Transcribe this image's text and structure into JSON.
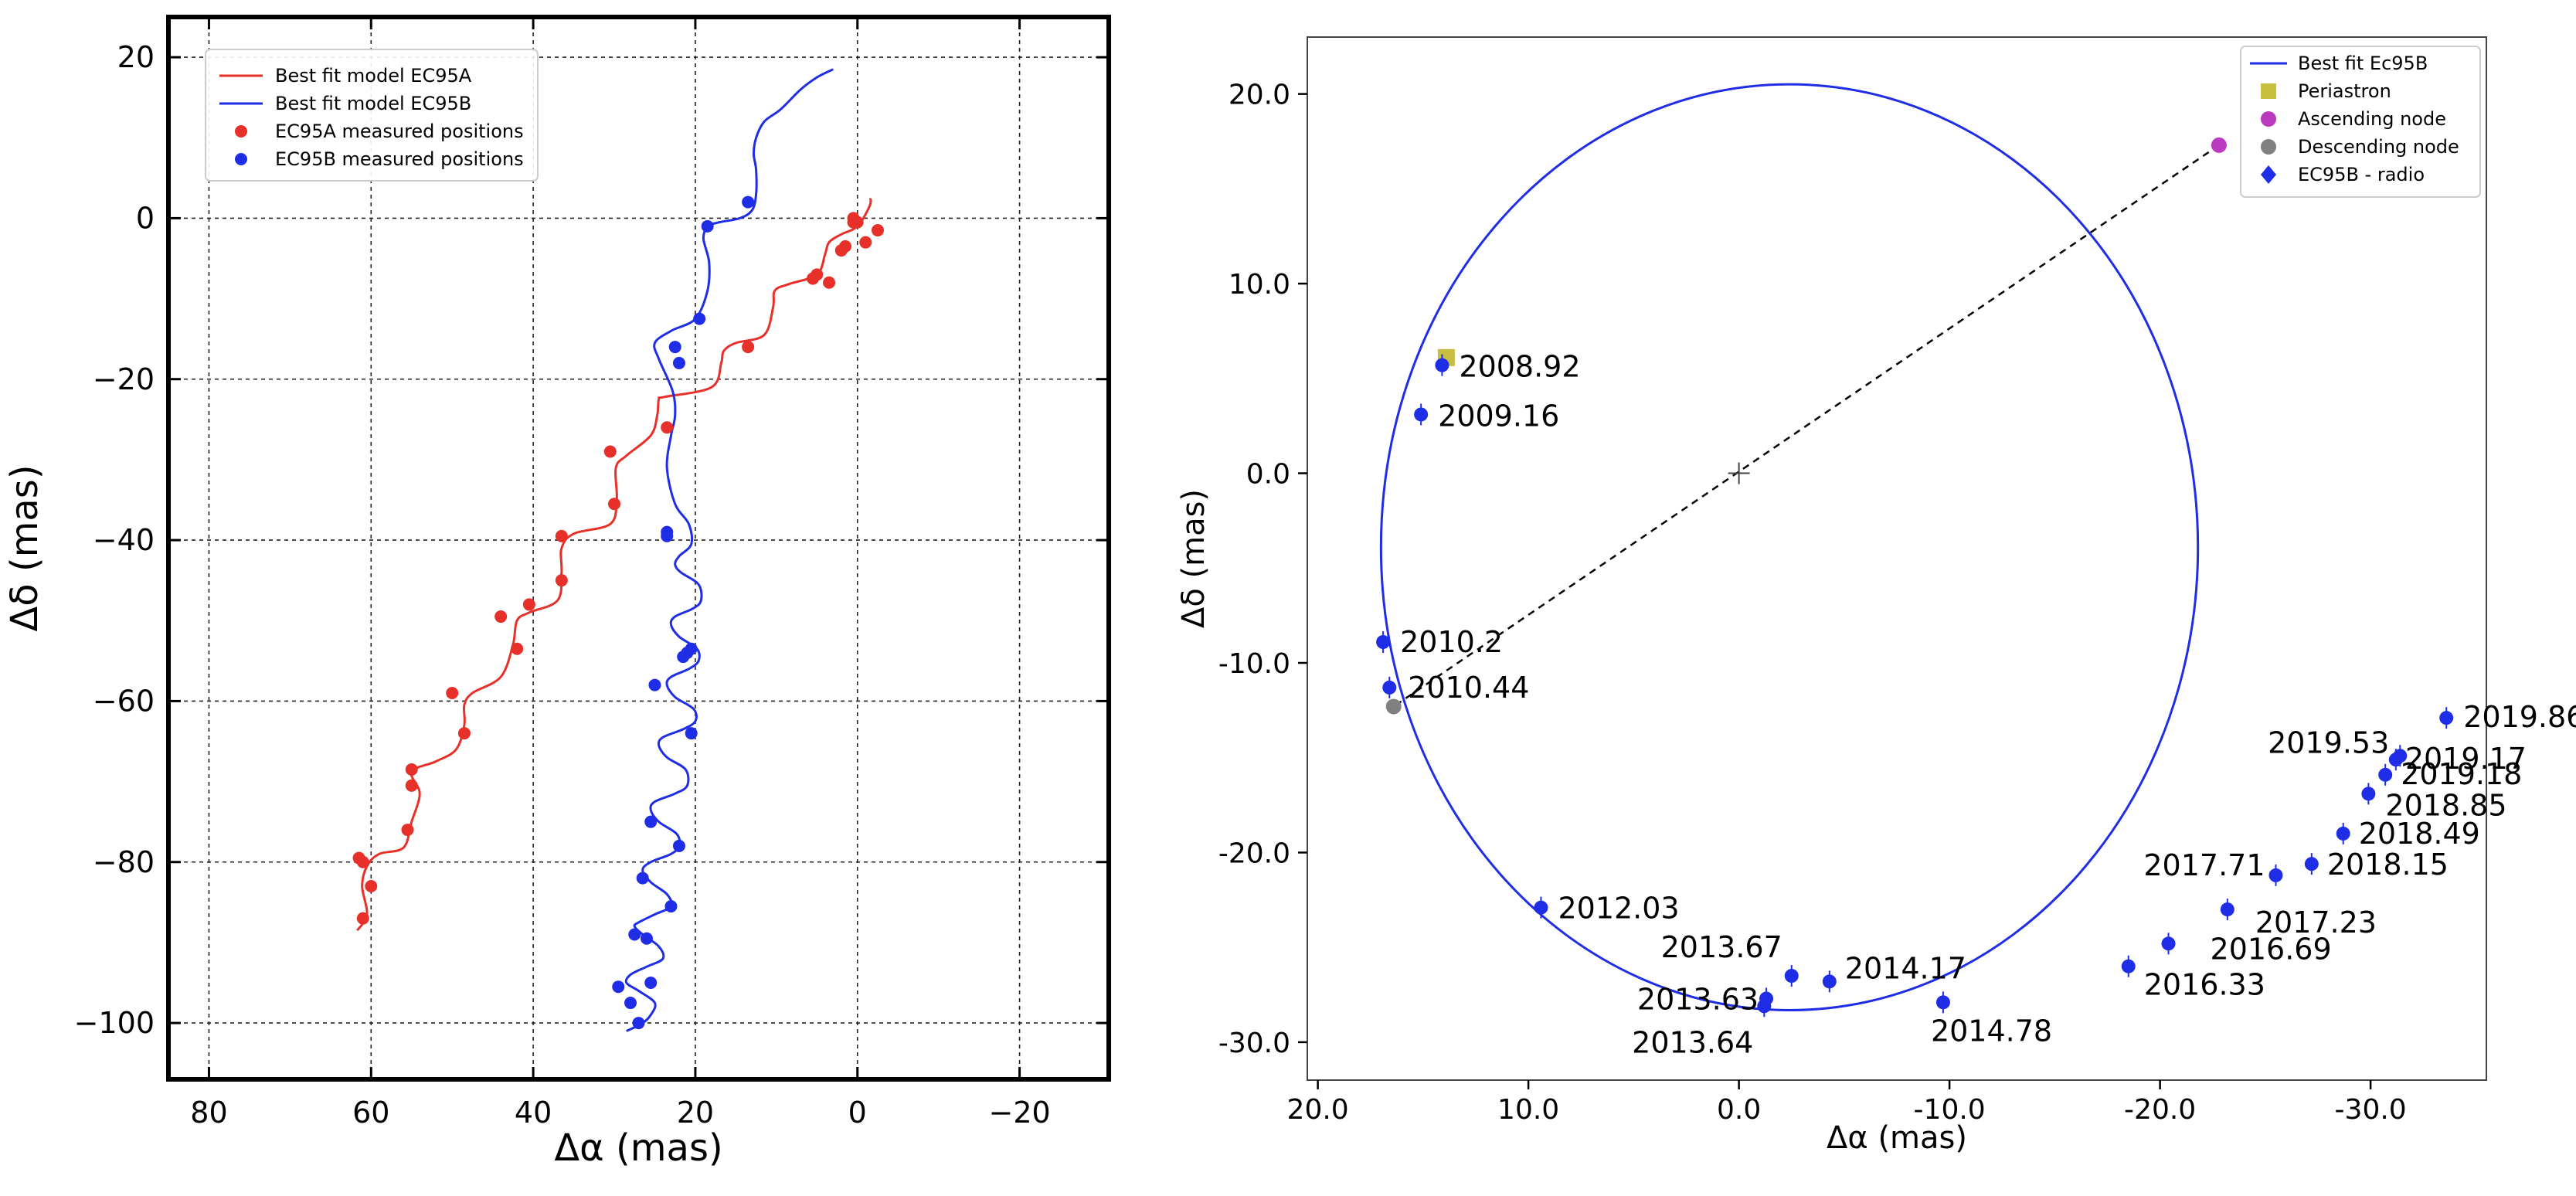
{
  "chart_data": [
    {
      "type": "line",
      "xlabel": "Δα (mas)",
      "ylabel": "Δδ (mas)",
      "xlim": [
        85,
        -31
      ],
      "ylim": [
        -107,
        25
      ],
      "xticks": [
        80,
        60,
        40,
        20,
        0,
        -20
      ],
      "yticks": [
        20,
        0,
        -20,
        -40,
        -60,
        -80,
        -100
      ],
      "xtick_labels": [
        "80",
        "60",
        "40",
        "20",
        "0",
        "−20"
      ],
      "ytick_labels": [
        "20",
        "0",
        "−20",
        "−40",
        "−60",
        "−80",
        "−100"
      ],
      "grid": true,
      "legend_position": "top-left",
      "legend": [
        {
          "label": "Best fit model EC95A",
          "kind": "line",
          "color": "#e8302a"
        },
        {
          "label": "Best fit model EC95B",
          "kind": "line",
          "color": "#1f2ee6"
        },
        {
          "label": "EC95A measured positions",
          "kind": "marker",
          "color": "#e8302a"
        },
        {
          "label": "EC95B measured positions",
          "kind": "marker",
          "color": "#1f2ee6"
        }
      ],
      "series": [
        {
          "name": "Best fit model EC95A",
          "kind": "line",
          "color": "#e8302a",
          "points": [
            [
              61.7,
              -88.5
            ],
            [
              60.5,
              -86.5
            ],
            [
              61.1,
              -83
            ],
            [
              60.5,
              -80.5
            ],
            [
              59,
              -79
            ],
            [
              56,
              -78.2
            ],
            [
              55,
              -75
            ],
            [
              54,
              -71.5
            ],
            [
              55,
              -68.8
            ],
            [
              52,
              -67.5
            ],
            [
              49.5,
              -66
            ],
            [
              48.5,
              -63
            ],
            [
              48.5,
              -60.5
            ],
            [
              47.5,
              -59
            ],
            [
              44,
              -57
            ],
            [
              42.5,
              -53
            ],
            [
              42,
              -50
            ],
            [
              40.5,
              -49
            ],
            [
              37,
              -47.5
            ],
            [
              36.5,
              -44
            ],
            [
              36.5,
              -41
            ],
            [
              35,
              -39.2
            ],
            [
              30.5,
              -38
            ],
            [
              29.7,
              -35
            ],
            [
              29.8,
              -31
            ],
            [
              28.5,
              -29.5
            ],
            [
              25.5,
              -27
            ],
            [
              24.7,
              -24.5
            ],
            [
              24.5,
              -22.5
            ],
            [
              23.8,
              -22.2
            ],
            [
              18,
              -21
            ],
            [
              16.8,
              -18
            ],
            [
              16.5,
              -16.5
            ],
            [
              15,
              -15.5
            ],
            [
              11.5,
              -14.5
            ],
            [
              10.4,
              -11
            ],
            [
              10.2,
              -9
            ],
            [
              8.5,
              -8.2
            ],
            [
              5,
              -7
            ],
            [
              4,
              -4.5
            ],
            [
              3.5,
              -3
            ],
            [
              2,
              -2
            ],
            [
              0,
              -1
            ],
            [
              -1.5,
              1.5
            ],
            [
              -1.6,
              2.5
            ]
          ]
        },
        {
          "name": "Best fit model EC95B",
          "kind": "line",
          "color": "#1f2ee6",
          "points": [
            [
              28.5,
              -101
            ],
            [
              26.5,
              -100
            ],
            [
              25.5,
              -99
            ],
            [
              25,
              -97.5
            ],
            [
              27,
              -96
            ],
            [
              28.5,
              -95
            ],
            [
              28,
              -94
            ],
            [
              26,
              -93
            ],
            [
              24,
              -92
            ],
            [
              24.5,
              -90.5
            ],
            [
              26.5,
              -89
            ],
            [
              27.5,
              -88
            ],
            [
              27,
              -87.5
            ],
            [
              25,
              -86.5
            ],
            [
              23,
              -85.5
            ],
            [
              23.5,
              -84
            ],
            [
              25.5,
              -82.5
            ],
            [
              26.5,
              -81
            ],
            [
              25.5,
              -80
            ],
            [
              23,
              -79
            ],
            [
              22,
              -78
            ],
            [
              22.3,
              -76.5
            ],
            [
              24.5,
              -75
            ],
            [
              25.5,
              -73.5
            ],
            [
              25,
              -72.5
            ],
            [
              22.5,
              -71.5
            ],
            [
              21,
              -70.5
            ],
            [
              21.2,
              -68.5
            ],
            [
              23.5,
              -67
            ],
            [
              24.5,
              -65.5
            ],
            [
              24,
              -64.5
            ],
            [
              21.5,
              -63.5
            ],
            [
              20,
              -62.5
            ],
            [
              20.2,
              -61
            ],
            [
              22.5,
              -59.5
            ],
            [
              23.5,
              -58
            ],
            [
              23,
              -57
            ],
            [
              20.8,
              -56
            ],
            [
              19.6,
              -55
            ],
            [
              19.8,
              -53.5
            ],
            [
              22,
              -52
            ],
            [
              23,
              -50.5
            ],
            [
              22.5,
              -49.5
            ],
            [
              20.3,
              -48.5
            ],
            [
              19.3,
              -47.5
            ],
            [
              19.6,
              -45.5
            ],
            [
              21.8,
              -44
            ],
            [
              22.5,
              -43
            ],
            [
              22,
              -42
            ],
            [
              20.5,
              -40.5
            ],
            [
              20.8,
              -38
            ],
            [
              22.5,
              -35.5
            ],
            [
              23.5,
              -31
            ],
            [
              23,
              -27
            ],
            [
              22.5,
              -24.5
            ],
            [
              22.8,
              -21.5
            ],
            [
              24.5,
              -17.5
            ],
            [
              25,
              -15.5
            ],
            [
              23,
              -14
            ],
            [
              20,
              -12.5
            ],
            [
              18.5,
              -9
            ],
            [
              18.3,
              -5.5
            ],
            [
              19,
              -2.5
            ],
            [
              18.4,
              -1
            ],
            [
              17,
              -0.5
            ],
            [
              14.5,
              0
            ],
            [
              13,
              1
            ],
            [
              12.5,
              3
            ],
            [
              12.5,
              6
            ],
            [
              12.8,
              8
            ],
            [
              12.5,
              10
            ],
            [
              11.5,
              12
            ],
            [
              9.5,
              13.5
            ],
            [
              7,
              16
            ],
            [
              5,
              17.5
            ],
            [
              3,
              18.5
            ]
          ]
        },
        {
          "name": "EC95A measured positions",
          "kind": "scatter",
          "color": "#e8302a",
          "points": [
            [
              61,
              -87
            ],
            [
              60,
              -83
            ],
            [
              61,
              -80
            ],
            [
              61.5,
              -79.5
            ],
            [
              55.5,
              -76
            ],
            [
              55,
              -70.5
            ],
            [
              55,
              -68.5
            ],
            [
              48.5,
              -64
            ],
            [
              50,
              -59
            ],
            [
              42,
              -53.5
            ],
            [
              44,
              -49.5
            ],
            [
              40.5,
              -48
            ],
            [
              36.5,
              -45
            ],
            [
              36.5,
              -39.5
            ],
            [
              30,
              -35.5
            ],
            [
              30.5,
              -29
            ],
            [
              23.5,
              -26
            ],
            [
              13.5,
              -16
            ],
            [
              3.5,
              -8
            ],
            [
              5,
              -7
            ],
            [
              5.5,
              -7.5
            ],
            [
              2,
              -4
            ],
            [
              1.5,
              -3.5
            ],
            [
              -1,
              -3
            ],
            [
              -2.5,
              -1.5
            ],
            [
              0.5,
              -0.5
            ],
            [
              0,
              -0.5
            ],
            [
              0.5,
              0
            ]
          ]
        },
        {
          "name": "EC95B measured positions",
          "kind": "scatter",
          "color": "#1f2ee6",
          "points": [
            [
              27,
              -100
            ],
            [
              28,
              -97.5
            ],
            [
              29.5,
              -95.5
            ],
            [
              25.5,
              -95
            ],
            [
              27.5,
              -89
            ],
            [
              26,
              -89.5
            ],
            [
              23,
              -85.5
            ],
            [
              26.5,
              -82
            ],
            [
              22,
              -78
            ],
            [
              25.5,
              -75
            ],
            [
              20.5,
              -64
            ],
            [
              25,
              -58
            ],
            [
              21,
              -54
            ],
            [
              20.5,
              -53.5
            ],
            [
              21.5,
              -54.5
            ],
            [
              23.5,
              -39
            ],
            [
              23.5,
              -39.5
            ],
            [
              22,
              -18
            ],
            [
              22.5,
              -16
            ],
            [
              19.5,
              -12.5
            ],
            [
              18.5,
              -1
            ],
            [
              13.5,
              2
            ]
          ]
        }
      ]
    },
    {
      "type": "line",
      "xlabel": "Δα (mas)",
      "ylabel": "Δδ (mas)",
      "xlim": [
        20.5,
        -35.5
      ],
      "ylim": [
        -32,
        23
      ],
      "xticks": [
        20,
        10,
        0,
        -10,
        -20,
        -30
      ],
      "yticks": [
        20,
        10,
        0,
        -10,
        -20,
        -30
      ],
      "xtick_labels": [
        "20.0",
        "10.0",
        "0.0",
        "-10.0",
        "-20.0",
        "-30.0"
      ],
      "ytick_labels": [
        "20.0",
        "10.0",
        "0.0",
        "-10.0",
        "-20.0",
        "-30.0"
      ],
      "grid": false,
      "legend_position": "top-right",
      "legend": [
        {
          "label": "Best fit Ec95B",
          "kind": "line",
          "color": "#1f2ee6"
        },
        {
          "label": "Periastron",
          "kind": "square",
          "color": "#c8be40"
        },
        {
          "label": "Ascending node",
          "kind": "circle",
          "color": "#bb3bc0"
        },
        {
          "label": "Descending node",
          "kind": "circle",
          "color": "#808080"
        },
        {
          "label": "EC95B - radio",
          "kind": "diamond",
          "color": "#1f2ee6"
        }
      ],
      "orbit": {
        "name": "Best fit Ec95B",
        "color": "#1f2ee6",
        "center": [
          -2.4,
          -3.9
        ],
        "semi_axis_x": 19.4,
        "semi_axis_y": 24.4
      },
      "center_marker": [
        0,
        0
      ],
      "line_of_nodes": {
        "from": [
          -22.8,
          17.3
        ],
        "to": [
          16.4,
          -12.3
        ]
      },
      "periastron": [
        13.9,
        6.1
      ],
      "ascending_node": [
        -22.8,
        17.3
      ],
      "descending_node": [
        16.4,
        -12.3
      ],
      "points": [
        {
          "label": "2008.92",
          "x": 14.1,
          "y": 5.7
        },
        {
          "label": "2009.16",
          "x": 15.1,
          "y": 3.1
        },
        {
          "label": "2010.2",
          "x": 16.9,
          "y": -8.9
        },
        {
          "label": "2010.44",
          "x": 16.6,
          "y": -11.3
        },
        {
          "label": "2012.03",
          "x": 9.4,
          "y": -22.9
        },
        {
          "label": "2013.67",
          "x": -2.5,
          "y": -26.5
        },
        {
          "label": "2013.63",
          "x": -1.3,
          "y": -27.7
        },
        {
          "label": "2013.64",
          "x": -1.2,
          "y": -28.1
        },
        {
          "label": "2014.17",
          "x": -4.3,
          "y": -26.8
        },
        {
          "label": "2014.78",
          "x": -9.7,
          "y": -27.9
        },
        {
          "label": "2016.33",
          "x": -18.5,
          "y": -26
        },
        {
          "label": "2016.69",
          "x": -20.4,
          "y": -24.8
        },
        {
          "label": "2017.23",
          "x": -23.2,
          "y": -23
        },
        {
          "label": "2017.71",
          "x": -25.5,
          "y": -21.2
        },
        {
          "label": "2018.15",
          "x": -27.2,
          "y": -20.6
        },
        {
          "label": "2018.49",
          "x": -28.7,
          "y": -19
        },
        {
          "label": "2018.85",
          "x": -29.9,
          "y": -16.9
        },
        {
          "label": "2019.18",
          "x": -30.7,
          "y": -15.9
        },
        {
          "label": "2019.17",
          "x": -31.2,
          "y": -15.1
        },
        {
          "label": "2019.53",
          "x": -31.4,
          "y": -14.9
        },
        {
          "label": "2019.86",
          "x": -33.6,
          "y": -12.9
        }
      ]
    }
  ]
}
